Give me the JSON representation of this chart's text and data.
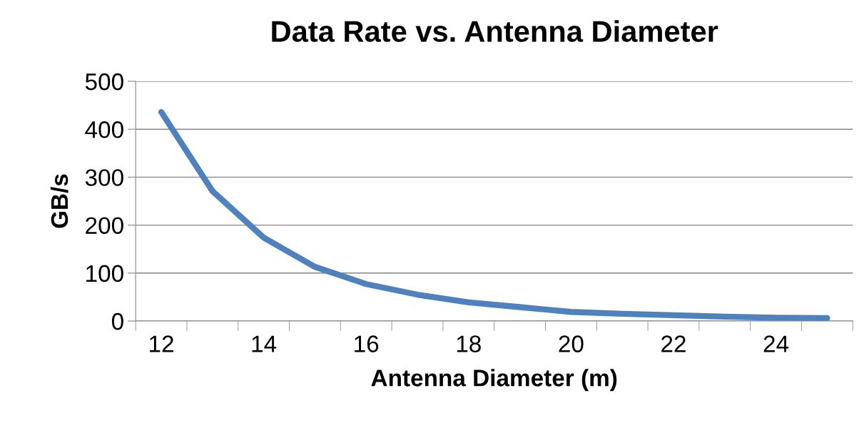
{
  "chart_data": {
    "type": "line",
    "title": "Data Rate vs. Antenna Diameter",
    "xlabel": "Antenna Diameter (m)",
    "ylabel": "GB/s",
    "categories": [
      "12",
      null,
      "14",
      null,
      "16",
      null,
      "18",
      null,
      "20",
      null,
      "22",
      null,
      "24",
      null
    ],
    "series": [
      {
        "color": "#4f81bd",
        "values": [
          436,
          271,
          174,
          113,
          77,
          55,
          39,
          29,
          19,
          15,
          12,
          9,
          7,
          6
        ]
      }
    ],
    "ylim": [
      0,
      500
    ],
    "yticks": [
      0,
      100,
      200,
      300,
      400,
      500
    ],
    "grid": "y",
    "legend": false,
    "marker": "none",
    "line_style": "solid"
  }
}
